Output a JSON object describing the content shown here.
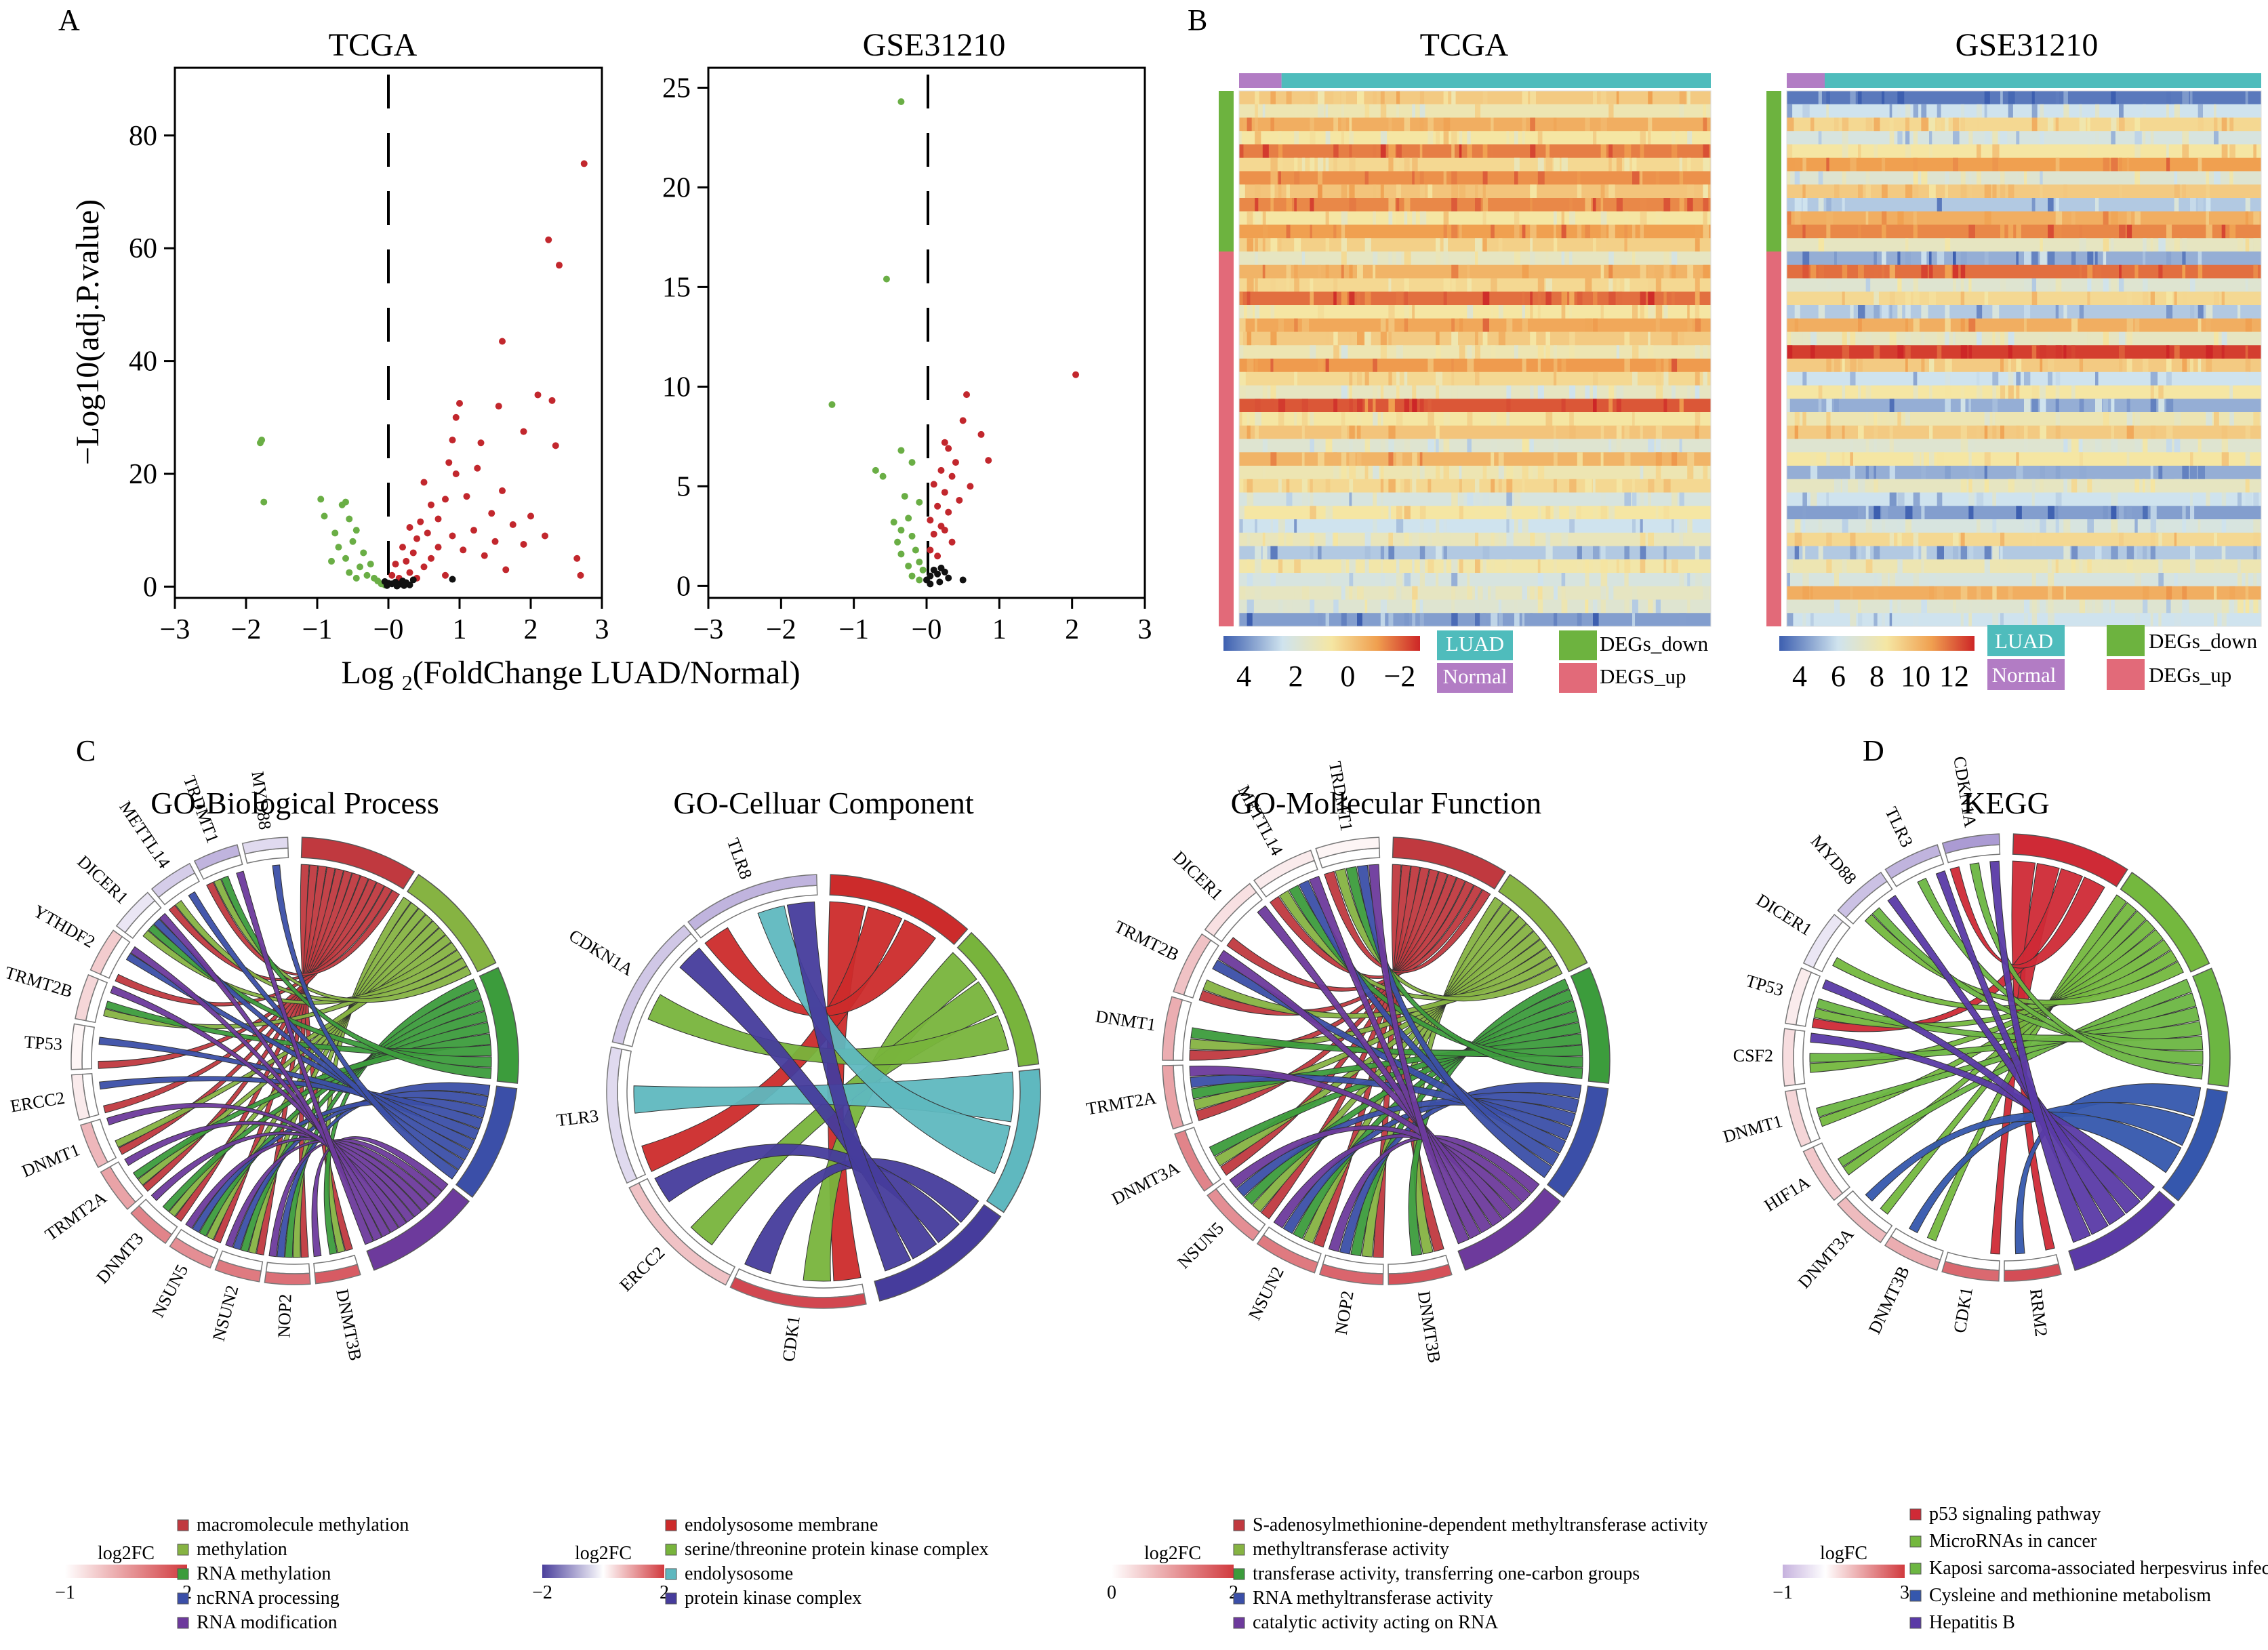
{
  "panel_letters": {
    "a": "A",
    "b": "B",
    "c": "C",
    "d": "D"
  },
  "colors": {
    "down": "#6aae45",
    "up": "#c2272d",
    "ns": "#111111",
    "luad": "#4fbcbc",
    "normal": "#b27cc4",
    "degs_down": "#6db33f",
    "degs_up": "#e26a79",
    "go1": "#c0393f",
    "go2": "#86b342",
    "go3": "#3c9c3c",
    "go4": "#3b4fa8",
    "go5": "#6d3a9c",
    "cc1": "#cc2b2b",
    "cc2": "#78b43c",
    "cc3": "#5fb8bf",
    "cc4": "#463c9c",
    "kegg1": "#cf2a36",
    "kegg2": "#74b83e",
    "kegg3": "#6cb642",
    "kegg4": "#3557ad",
    "kegg5": "#5a3aa6"
  },
  "chart_data": [
    {
      "id": "volcano-tcga",
      "type": "scatter",
      "title": "TCGA",
      "xlabel": "Log2(FoldChange LUAD/Normal)",
      "ylabel": "−Log10(adj.P.value)",
      "xlim": [
        -3,
        3
      ],
      "ylim": [
        -2,
        92
      ],
      "xticks": [
        -3,
        -2,
        -1,
        0,
        1,
        2,
        3
      ],
      "xtick_labels": [
        "−3",
        "−2",
        "−1",
        "−0",
        "1",
        "2",
        "3"
      ],
      "yticks": [
        0,
        20,
        40,
        60,
        80
      ],
      "ytick_labels": [
        "0",
        "20",
        "40",
        "60",
        "80"
      ],
      "threshold_x": 0,
      "series": [
        {
          "key": "down",
          "points": [
            [
              -1.8,
              25.5
            ],
            [
              -1.78,
              26
            ],
            [
              -1.75,
              15
            ],
            [
              -0.95,
              15.5
            ],
            [
              -0.9,
              12.5
            ],
            [
              -0.75,
              9.5
            ],
            [
              -0.65,
              14.5
            ],
            [
              -0.6,
              15
            ],
            [
              -0.55,
              12
            ],
            [
              -0.45,
              10
            ],
            [
              -0.5,
              8
            ],
            [
              -0.7,
              7
            ],
            [
              -0.8,
              4.5
            ],
            [
              -0.6,
              5
            ],
            [
              -0.4,
              3.5
            ],
            [
              -0.3,
              2
            ],
            [
              -0.55,
              2.5
            ],
            [
              -0.2,
              1.5
            ],
            [
              -0.15,
              1
            ],
            [
              -0.1,
              0.5
            ],
            [
              -0.35,
              6
            ],
            [
              -0.25,
              4
            ],
            [
              -0.05,
              0.3
            ],
            [
              -0.45,
              1.5
            ]
          ]
        },
        {
          "key": "up",
          "points": [
            [
              2.75,
              75
            ],
            [
              2.25,
              61.5
            ],
            [
              2.4,
              57
            ],
            [
              1.6,
              43.5
            ],
            [
              1.0,
              32.5
            ],
            [
              2.1,
              34
            ],
            [
              2.3,
              33
            ],
            [
              1.55,
              32
            ],
            [
              0.95,
              30
            ],
            [
              1.9,
              27.5
            ],
            [
              0.9,
              26
            ],
            [
              1.3,
              25.5
            ],
            [
              2.35,
              25
            ],
            [
              0.85,
              22
            ],
            [
              1.25,
              21
            ],
            [
              0.95,
              20
            ],
            [
              0.5,
              18.5
            ],
            [
              1.6,
              17
            ],
            [
              1.1,
              16
            ],
            [
              0.8,
              15.5
            ],
            [
              0.6,
              14.5
            ],
            [
              1.45,
              13
            ],
            [
              2.0,
              12.5
            ],
            [
              0.7,
              12
            ],
            [
              0.45,
              11.5
            ],
            [
              1.75,
              11
            ],
            [
              0.3,
              10.5
            ],
            [
              1.2,
              10
            ],
            [
              0.55,
              9.5
            ],
            [
              2.2,
              9
            ],
            [
              0.9,
              9
            ],
            [
              0.4,
              8.5
            ],
            [
              1.5,
              8
            ],
            [
              1.9,
              7.5
            ],
            [
              0.2,
              7
            ],
            [
              0.7,
              7
            ],
            [
              1.05,
              6.5
            ],
            [
              0.35,
              6
            ],
            [
              1.35,
              5.5
            ],
            [
              0.6,
              5
            ],
            [
              2.65,
              5
            ],
            [
              0.25,
              4.5
            ],
            [
              0.1,
              4
            ],
            [
              0.5,
              3.5
            ],
            [
              1.65,
              3
            ],
            [
              0.3,
              2.5
            ],
            [
              0.05,
              2
            ],
            [
              2.7,
              2
            ],
            [
              0.15,
              1.5
            ],
            [
              0.4,
              1.5
            ],
            [
              0.8,
              2
            ]
          ]
        },
        {
          "key": "ns",
          "points": [
            [
              -0.02,
              0.2
            ],
            [
              0.05,
              0.5
            ],
            [
              0.1,
              0.8
            ],
            [
              0.15,
              0.4
            ],
            [
              0.2,
              1
            ],
            [
              0.25,
              0.7
            ],
            [
              0.3,
              0.3
            ],
            [
              0.0,
              0.6
            ],
            [
              -0.05,
              0.9
            ],
            [
              0.35,
              1.2
            ],
            [
              0.9,
              1.3
            ],
            [
              0.12,
              0.1
            ],
            [
              0.22,
              0.2
            ]
          ]
        }
      ]
    },
    {
      "id": "volcano-gse",
      "type": "scatter",
      "title": "GSE31210",
      "xlabel": "",
      "ylabel": "",
      "xlim": [
        -3,
        3
      ],
      "ylim": [
        -0.6,
        26
      ],
      "xticks": [
        -3,
        -2,
        -1,
        0,
        1,
        2,
        3
      ],
      "xtick_labels": [
        "−3",
        "−2",
        "−1",
        "−0",
        "1",
        "2",
        "3"
      ],
      "yticks": [
        0,
        5,
        10,
        15,
        20,
        25
      ],
      "ytick_labels": [
        "0",
        "5",
        "10",
        "15",
        "20",
        "25"
      ],
      "threshold_x": 0,
      "series": [
        {
          "key": "down",
          "points": [
            [
              -0.35,
              24.3
            ],
            [
              -0.55,
              15.4
            ],
            [
              -1.3,
              9.1
            ],
            [
              -0.35,
              6.8
            ],
            [
              -0.2,
              6.2
            ],
            [
              -0.7,
              5.8
            ],
            [
              -0.6,
              5.5
            ],
            [
              -0.3,
              4.5
            ],
            [
              -0.1,
              4.2
            ],
            [
              -0.25,
              3.4
            ],
            [
              -0.45,
              3.2
            ],
            [
              -0.35,
              2.8
            ],
            [
              -0.2,
              2.5
            ],
            [
              -0.15,
              1.8
            ],
            [
              -0.35,
              1.6
            ],
            [
              -0.1,
              1.2
            ],
            [
              -0.05,
              0.8
            ],
            [
              -0.2,
              0.5
            ],
            [
              -0.1,
              0.3
            ],
            [
              -0.25,
              1
            ],
            [
              -0.4,
              2.2
            ]
          ]
        },
        {
          "key": "up",
          "points": [
            [
              2.05,
              10.6
            ],
            [
              0.55,
              9.6
            ],
            [
              0.5,
              8.3
            ],
            [
              0.75,
              7.6
            ],
            [
              0.25,
              7.2
            ],
            [
              0.3,
              6.9
            ],
            [
              0.4,
              6.2
            ],
            [
              0.85,
              6.3
            ],
            [
              0.2,
              5.8
            ],
            [
              0.35,
              5.5
            ],
            [
              0.1,
              5.1
            ],
            [
              0.6,
              5
            ],
            [
              0.25,
              4.7
            ],
            [
              0.45,
              4.3
            ],
            [
              0.15,
              4
            ],
            [
              0.3,
              3.7
            ],
            [
              0.05,
              3.3
            ],
            [
              0.2,
              3
            ],
            [
              0.1,
              2.6
            ],
            [
              0.35,
              2.2
            ],
            [
              0.05,
              1.8
            ],
            [
              0.15,
              1.5
            ],
            [
              0.25,
              2.8
            ]
          ]
        },
        {
          "key": "ns",
          "points": [
            [
              0.0,
              0.3
            ],
            [
              0.05,
              0.5
            ],
            [
              0.1,
              0.8
            ],
            [
              0.15,
              0.6
            ],
            [
              0.2,
              0.9
            ],
            [
              0.25,
              0.7
            ],
            [
              0.3,
              0.4
            ],
            [
              0.5,
              0.3
            ],
            [
              0.05,
              0.1
            ],
            [
              0.18,
              0.2
            ]
          ]
        }
      ]
    },
    {
      "id": "heatmap-tcga",
      "type": "heatmap",
      "title": "TCGA",
      "colorbar_ticks": [
        "4",
        "2",
        "0",
        "−2"
      ],
      "colorbar_colors": [
        "#3d5fb0",
        "#cfe3ee",
        "#f5e6a3",
        "#f0a050",
        "#cd2627"
      ],
      "groups": [
        {
          "name": "Normal",
          "fraction": 0.09
        },
        {
          "name": "LUAD",
          "fraction": 0.91
        }
      ],
      "row_groups": [
        {
          "name": "DEGs_down",
          "count": 12
        },
        {
          "name": "DEGS_up",
          "count": 28
        }
      ],
      "row_levels": [
        0.6,
        0.45,
        0.7,
        0.5,
        0.82,
        0.55,
        0.78,
        0.62,
        0.8,
        0.5,
        0.75,
        0.58,
        0.4,
        0.68,
        0.55,
        0.85,
        0.5,
        0.72,
        0.6,
        0.45,
        0.76,
        0.55,
        0.4,
        0.9,
        0.5,
        0.62,
        0.35,
        0.68,
        0.45,
        0.55,
        0.3,
        0.5,
        0.25,
        0.42,
        0.2,
        0.48,
        0.3,
        0.4,
        0.35,
        0.12
      ]
    },
    {
      "id": "heatmap-gse",
      "type": "heatmap",
      "title": "GSE31210",
      "colorbar_ticks": [
        "4",
        "6",
        "8",
        "10",
        "12"
      ],
      "colorbar_colors": [
        "#3d5fb0",
        "#cfe3ee",
        "#f5e6a3",
        "#f0a050",
        "#cd2627"
      ],
      "groups": [
        {
          "name": "Normal",
          "fraction": 0.08
        },
        {
          "name": "LUAD",
          "fraction": 0.92
        }
      ],
      "row_groups": [
        {
          "name": "DEGs_down",
          "count": 12
        },
        {
          "name": "DEGs_up",
          "count": 28
        }
      ],
      "row_levels": [
        0.05,
        0.25,
        0.55,
        0.3,
        0.5,
        0.75,
        0.35,
        0.6,
        0.2,
        0.7,
        0.8,
        0.4,
        0.15,
        0.85,
        0.35,
        0.55,
        0.2,
        0.7,
        0.4,
        0.95,
        0.6,
        0.25,
        0.5,
        0.15,
        0.45,
        0.6,
        0.35,
        0.5,
        0.15,
        0.4,
        0.25,
        0.12,
        0.3,
        0.55,
        0.2,
        0.45,
        0.3,
        0.7,
        0.35,
        0.25
      ]
    },
    {
      "id": "chord-bp",
      "type": "chord",
      "title": "GO-Biological Process",
      "genes": [
        "DNMT3B",
        "NOP2",
        "NSUN2",
        "NSUN5",
        "DNMT3",
        "TRMT2A",
        "DNMT1",
        "ERCC2",
        "TP53",
        "TRMT2B",
        "YTHDF2",
        "DICER1",
        "METTL14",
        "TRDMT1",
        "MYD88"
      ],
      "gene_fc": [
        1.6,
        1.4,
        1.3,
        1.1,
        1.2,
        0.9,
        0.7,
        0.2,
        0.1,
        0.4,
        0.5,
        -0.2,
        -0.4,
        -0.6,
        -0.3
      ],
      "terms": [
        "macromolecule methylation",
        "methylation",
        "RNA methylation",
        "ncRNA processing",
        "RNA modification"
      ],
      "legend_title": "log2FC",
      "legend_range": [
        "−1",
        "2"
      ]
    },
    {
      "id": "chord-cc",
      "type": "chord",
      "title": "GO-Celluar Component",
      "genes": [
        "CDK1",
        "ERCC2",
        "TLR3",
        "CDKN1A",
        "TLR8"
      ],
      "gene_fc": [
        1.8,
        0.6,
        -0.6,
        -0.9,
        -1.2
      ],
      "terms": [
        "endolysosome membrane",
        "serine/threonine protein kinase complex",
        "endolysosome",
        "protein kinase complex"
      ],
      "legend_title": "log2FC",
      "legend_range": [
        "−2",
        "2"
      ]
    },
    {
      "id": "chord-mf",
      "type": "chord",
      "title": "GO-Mollecular Function",
      "genes": [
        "DNMT3B",
        "NOP2",
        "NSUN2",
        "NSUN5",
        "DNMT3A",
        "TRMT2A",
        "DNMT1",
        "TRMT2B",
        "DICER1",
        "METTL14",
        "TRDMT1"
      ],
      "gene_fc": [
        1.7,
        1.5,
        1.3,
        1.1,
        1.2,
        0.9,
        0.8,
        0.6,
        0.3,
        0.2,
        0.1
      ],
      "terms": [
        "S-adenosylmethionine-dependent methyltransferase activity",
        "methyltransferase activity",
        "transferase activity, transferring one-carbon groups",
        "RNA methyltransferase activity",
        "catalytic activity acting on RNA"
      ],
      "legend_title": "log2FC",
      "legend_range": [
        "0",
        "2"
      ]
    },
    {
      "id": "chord-kegg",
      "type": "chord",
      "title": "KEGG",
      "genes": [
        "RRM2",
        "CDK1",
        "DNMT3B",
        "DNMT3A",
        "HIF1A",
        "DNMT1",
        "CSF2",
        "TP53",
        "DICER1",
        "MYD88",
        "TLR3",
        "CDKN1A"
      ],
      "gene_fc": [
        2.6,
        2.2,
        1.2,
        1.0,
        0.8,
        0.6,
        0.5,
        0.3,
        -0.2,
        -0.5,
        -0.6,
        -0.8
      ],
      "terms": [
        "p53 signaling pathway",
        "MicroRNAs in cancer",
        "Kaposi sarcoma-associated herpesvirus infection",
        "Cysleine and methionine metabolism",
        "Hepatitis B"
      ],
      "legend_title": "logFC",
      "legend_range": [
        "−1",
        "3"
      ]
    }
  ],
  "heatmap_legend": {
    "luad": "LUAD",
    "normal": "Normal",
    "degs_down": "DEGs_down",
    "tcga_up": "DEGS_up",
    "gse_up": "DEGs_up"
  }
}
